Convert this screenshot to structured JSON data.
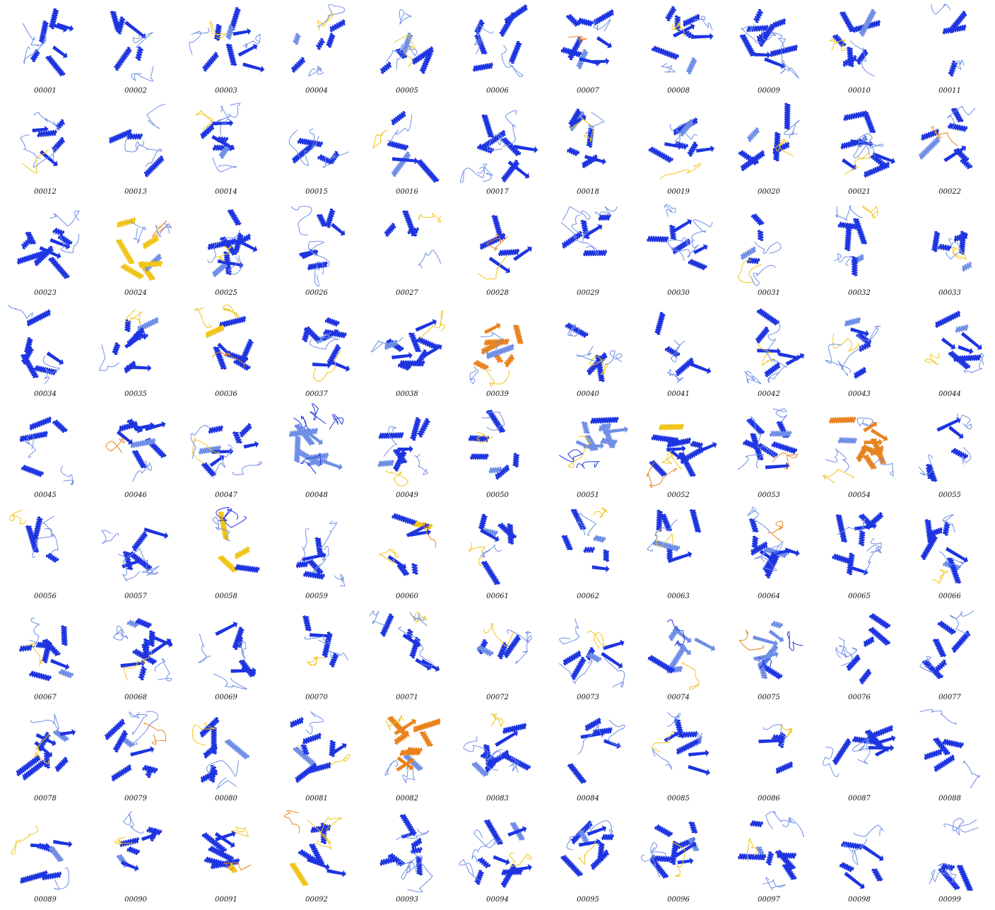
{
  "colors": {
    "very_high": "#1d34e0",
    "confident": "#6f8ee6",
    "low": "#f0c419",
    "very_low": "#e8821e",
    "background": "#ffffff",
    "label": "#111111"
  },
  "items": [
    {
      "id": "00001",
      "palette": [
        "very_high",
        "confident"
      ]
    },
    {
      "id": "00002",
      "palette": [
        "very_high",
        "confident"
      ]
    },
    {
      "id": "00003",
      "palette": [
        "very_high",
        "low",
        "confident"
      ]
    },
    {
      "id": "00004",
      "palette": [
        "very_high",
        "low",
        "confident"
      ]
    },
    {
      "id": "00005",
      "palette": [
        "very_high",
        "low",
        "confident"
      ]
    },
    {
      "id": "00006",
      "palette": [
        "very_high",
        "confident"
      ]
    },
    {
      "id": "00007",
      "palette": [
        "very_high",
        "very_low",
        "confident"
      ]
    },
    {
      "id": "00008",
      "palette": [
        "very_high",
        "low",
        "confident"
      ]
    },
    {
      "id": "00009",
      "palette": [
        "very_high",
        "confident"
      ]
    },
    {
      "id": "00010",
      "palette": [
        "very_high",
        "low",
        "confident"
      ]
    },
    {
      "id": "00011",
      "palette": [
        "very_high",
        "confident"
      ]
    },
    {
      "id": "00012",
      "palette": [
        "very_high",
        "low",
        "confident"
      ]
    },
    {
      "id": "00013",
      "palette": [
        "very_high",
        "confident"
      ]
    },
    {
      "id": "00014",
      "palette": [
        "very_high",
        "low",
        "confident"
      ]
    },
    {
      "id": "00015",
      "palette": [
        "very_high",
        "confident"
      ]
    },
    {
      "id": "00016",
      "palette": [
        "very_high",
        "low",
        "confident"
      ]
    },
    {
      "id": "00017",
      "palette": [
        "very_high",
        "confident"
      ]
    },
    {
      "id": "00018",
      "palette": [
        "very_high",
        "low",
        "confident"
      ]
    },
    {
      "id": "00019",
      "palette": [
        "very_high",
        "low",
        "confident"
      ]
    },
    {
      "id": "00020",
      "palette": [
        "very_high",
        "low",
        "confident"
      ]
    },
    {
      "id": "00021",
      "palette": [
        "very_high",
        "low",
        "confident"
      ]
    },
    {
      "id": "00022",
      "palette": [
        "very_high",
        "very_low",
        "confident"
      ]
    },
    {
      "id": "00023",
      "palette": [
        "very_high",
        "confident"
      ]
    },
    {
      "id": "00024",
      "palette": [
        "low",
        "very_low",
        "confident"
      ]
    },
    {
      "id": "00025",
      "palette": [
        "very_high",
        "low",
        "confident"
      ]
    },
    {
      "id": "00026",
      "palette": [
        "very_high",
        "confident"
      ]
    },
    {
      "id": "00027",
      "palette": [
        "very_high",
        "low",
        "confident"
      ]
    },
    {
      "id": "00028",
      "palette": [
        "very_high",
        "very_low",
        "low"
      ]
    },
    {
      "id": "00029",
      "palette": [
        "very_high",
        "confident"
      ]
    },
    {
      "id": "00030",
      "palette": [
        "very_high",
        "confident"
      ]
    },
    {
      "id": "00031",
      "palette": [
        "very_high",
        "low",
        "confident"
      ]
    },
    {
      "id": "00032",
      "palette": [
        "very_high",
        "low",
        "confident"
      ]
    },
    {
      "id": "00033",
      "palette": [
        "very_high",
        "low",
        "confident"
      ]
    },
    {
      "id": "00034",
      "palette": [
        "very_high",
        "confident"
      ]
    },
    {
      "id": "00035",
      "palette": [
        "very_high",
        "low",
        "confident"
      ]
    },
    {
      "id": "00036",
      "palette": [
        "very_high",
        "very_low",
        "low"
      ]
    },
    {
      "id": "00037",
      "palette": [
        "very_high",
        "low",
        "confident"
      ]
    },
    {
      "id": "00038",
      "palette": [
        "very_high",
        "low",
        "confident"
      ]
    },
    {
      "id": "00039",
      "palette": [
        "very_low",
        "low",
        "confident"
      ]
    },
    {
      "id": "00040",
      "palette": [
        "very_high",
        "low",
        "confident"
      ]
    },
    {
      "id": "00041",
      "palette": [
        "very_high",
        "confident"
      ]
    },
    {
      "id": "00042",
      "palette": [
        "very_high",
        "low",
        "confident"
      ]
    },
    {
      "id": "00043",
      "palette": [
        "very_high",
        "low",
        "confident"
      ]
    },
    {
      "id": "00044",
      "palette": [
        "very_high",
        "low",
        "confident"
      ]
    },
    {
      "id": "00045",
      "palette": [
        "very_high",
        "confident"
      ]
    },
    {
      "id": "00046",
      "palette": [
        "very_high",
        "very_low",
        "confident"
      ]
    },
    {
      "id": "00047",
      "palette": [
        "very_high",
        "low",
        "confident"
      ]
    },
    {
      "id": "00048",
      "palette": [
        "confident",
        "very_high"
      ]
    },
    {
      "id": "00049",
      "palette": [
        "very_high",
        "low",
        "confident"
      ]
    },
    {
      "id": "00050",
      "palette": [
        "very_high",
        "low",
        "confident"
      ]
    },
    {
      "id": "00051",
      "palette": [
        "confident",
        "low",
        "very_high"
      ]
    },
    {
      "id": "00052",
      "palette": [
        "very_high",
        "very_low",
        "low"
      ]
    },
    {
      "id": "00053",
      "palette": [
        "very_high",
        "very_low",
        "confident"
      ]
    },
    {
      "id": "00054",
      "palette": [
        "very_low",
        "low",
        "confident"
      ]
    },
    {
      "id": "00055",
      "palette": [
        "very_high",
        "confident"
      ]
    },
    {
      "id": "00056",
      "palette": [
        "very_high",
        "low",
        "confident"
      ]
    },
    {
      "id": "00057",
      "palette": [
        "very_high",
        "confident"
      ]
    },
    {
      "id": "00058",
      "palette": [
        "low",
        "confident",
        "very_high"
      ]
    },
    {
      "id": "00059",
      "palette": [
        "very_high",
        "confident"
      ]
    },
    {
      "id": "00060",
      "palette": [
        "very_high",
        "very_low",
        "low"
      ]
    },
    {
      "id": "00061",
      "palette": [
        "very_high",
        "low",
        "confident"
      ]
    },
    {
      "id": "00062",
      "palette": [
        "very_high",
        "low",
        "confident"
      ]
    },
    {
      "id": "00063",
      "palette": [
        "very_high",
        "low",
        "confident"
      ]
    },
    {
      "id": "00064",
      "palette": [
        "very_high",
        "very_low",
        "confident"
      ]
    },
    {
      "id": "00065",
      "palette": [
        "very_high",
        "confident"
      ]
    },
    {
      "id": "00066",
      "palette": [
        "very_high",
        "low",
        "confident"
      ]
    },
    {
      "id": "00067",
      "palette": [
        "very_high",
        "low",
        "confident"
      ]
    },
    {
      "id": "00068",
      "palette": [
        "very_high",
        "low",
        "confident"
      ]
    },
    {
      "id": "00069",
      "palette": [
        "very_high",
        "confident"
      ]
    },
    {
      "id": "00070",
      "palette": [
        "very_high",
        "low",
        "confident"
      ]
    },
    {
      "id": "00071",
      "palette": [
        "very_high",
        "low",
        "confident"
      ]
    },
    {
      "id": "00072",
      "palette": [
        "very_high",
        "low",
        "confident"
      ]
    },
    {
      "id": "00073",
      "palette": [
        "very_high",
        "low",
        "confident"
      ]
    },
    {
      "id": "00074",
      "palette": [
        "confident",
        "low",
        "very_high"
      ]
    },
    {
      "id": "00075",
      "palette": [
        "confident",
        "very_low",
        "very_high"
      ]
    },
    {
      "id": "00076",
      "palette": [
        "very_high",
        "confident"
      ]
    },
    {
      "id": "00077",
      "palette": [
        "very_high",
        "confident"
      ]
    },
    {
      "id": "00078",
      "palette": [
        "very_high",
        "low",
        "confident"
      ]
    },
    {
      "id": "00079",
      "palette": [
        "very_high",
        "very_low",
        "confident"
      ]
    },
    {
      "id": "00080",
      "palette": [
        "very_high",
        "low",
        "confident"
      ]
    },
    {
      "id": "00081",
      "palette": [
        "very_high",
        "low",
        "confident"
      ]
    },
    {
      "id": "00082",
      "palette": [
        "very_low",
        "low",
        "confident"
      ]
    },
    {
      "id": "00083",
      "palette": [
        "very_high",
        "low",
        "confident"
      ]
    },
    {
      "id": "00084",
      "palette": [
        "very_high",
        "confident"
      ]
    },
    {
      "id": "00085",
      "palette": [
        "very_high",
        "low",
        "confident"
      ]
    },
    {
      "id": "00086",
      "palette": [
        "very_high",
        "low",
        "confident"
      ]
    },
    {
      "id": "00087",
      "palette": [
        "very_high",
        "confident"
      ]
    },
    {
      "id": "00088",
      "palette": [
        "very_high",
        "confident"
      ]
    },
    {
      "id": "00089",
      "palette": [
        "very_high",
        "low",
        "confident"
      ]
    },
    {
      "id": "00090",
      "palette": [
        "very_high",
        "low",
        "confident"
      ]
    },
    {
      "id": "00091",
      "palette": [
        "very_high",
        "very_low",
        "low"
      ]
    },
    {
      "id": "00092",
      "palette": [
        "very_high",
        "very_low",
        "low"
      ]
    },
    {
      "id": "00093",
      "palette": [
        "very_high",
        "confident"
      ]
    },
    {
      "id": "00094",
      "palette": [
        "very_high",
        "low",
        "confident"
      ]
    },
    {
      "id": "00095",
      "palette": [
        "very_high",
        "low",
        "confident"
      ]
    },
    {
      "id": "00096",
      "palette": [
        "very_high",
        "low",
        "confident"
      ]
    },
    {
      "id": "00097",
      "palette": [
        "very_high",
        "low",
        "confident"
      ]
    },
    {
      "id": "00098",
      "palette": [
        "very_high",
        "confident"
      ]
    },
    {
      "id": "00099",
      "palette": [
        "very_high",
        "confident"
      ]
    }
  ]
}
